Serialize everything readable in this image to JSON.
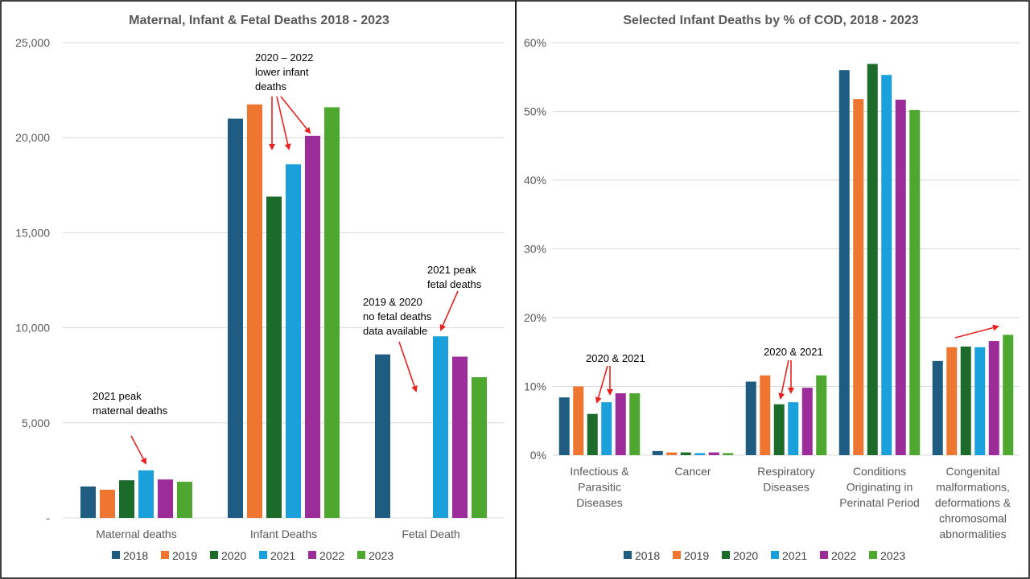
{
  "chart_data": [
    {
      "type": "bar",
      "title": "Maternal, Infant & Fetal Deaths 2018 - 2023",
      "xlabel": "",
      "ylabel": "",
      "ylim": [
        0,
        25000
      ],
      "yticks": [
        "-",
        "5,000",
        "10,000",
        "15,000",
        "20,000",
        "25,000"
      ],
      "grid": true,
      "legend_position": "bottom",
      "categories": [
        "Maternal deaths",
        "Infant Deaths",
        "Fetal Death"
      ],
      "series": [
        {
          "name": "2018",
          "color": "#1f5c82",
          "values": [
            1650,
            21000,
            8600
          ]
        },
        {
          "name": "2019",
          "color": "#ee7630",
          "values": [
            1480,
            21750,
            null
          ]
        },
        {
          "name": "2020",
          "color": "#1d6b2a",
          "values": [
            1980,
            16900,
            null
          ]
        },
        {
          "name": "2021",
          "color": "#1aa0db",
          "values": [
            2500,
            18600,
            9550
          ]
        },
        {
          "name": "2022",
          "color": "#9b2c99",
          "values": [
            2020,
            20100,
            8480
          ]
        },
        {
          "name": "2023",
          "color": "#4ea72e",
          "values": [
            1900,
            21600,
            7400
          ]
        }
      ],
      "annotations": [
        {
          "text": [
            "2021 peak",
            "maternal deaths"
          ]
        },
        {
          "text": [
            "2020 – 2022",
            "lower infant",
            "deaths"
          ]
        },
        {
          "text": [
            "2021 peak",
            "fetal deaths"
          ]
        },
        {
          "text": [
            "2019 & 2020",
            "no fetal deaths",
            "data available"
          ]
        }
      ]
    },
    {
      "type": "bar",
      "title": "Selected Infant Deaths by % of COD, 2018 - 2023",
      "xlabel": "",
      "ylabel": "",
      "ylim": [
        0,
        60
      ],
      "yticks": [
        "0%",
        "10%",
        "20%",
        "30%",
        "40%",
        "50%",
        "60%"
      ],
      "grid": true,
      "legend_position": "bottom",
      "categories": [
        [
          "Infectious &",
          "Parasitic",
          "Diseases"
        ],
        [
          "Cancer"
        ],
        [
          "Respiratory",
          "Diseases"
        ],
        [
          "Conditions",
          "Originating in",
          "Perinatal Period"
        ],
        [
          "Congenital",
          "malformations,",
          "deformations &",
          "chromosomal",
          "abnormalities"
        ]
      ],
      "series": [
        {
          "name": "2018",
          "color": "#1f5c82",
          "values": [
            8.4,
            0.6,
            10.7,
            56.0,
            13.7
          ]
        },
        {
          "name": "2019",
          "color": "#ee7630",
          "values": [
            10.0,
            0.4,
            11.6,
            51.8,
            15.7
          ]
        },
        {
          "name": "2020",
          "color": "#1d6b2a",
          "values": [
            6.0,
            0.4,
            7.4,
            56.9,
            15.8
          ]
        },
        {
          "name": "2021",
          "color": "#1aa0db",
          "values": [
            7.7,
            0.3,
            7.7,
            55.3,
            15.7
          ]
        },
        {
          "name": "2022",
          "color": "#9b2c99",
          "values": [
            9.0,
            0.4,
            9.8,
            51.7,
            16.6
          ]
        },
        {
          "name": "2023",
          "color": "#4ea72e",
          "values": [
            9.0,
            0.3,
            11.6,
            50.2,
            17.5
          ]
        }
      ],
      "annotations": [
        {
          "text": [
            "2020 & 2021"
          ]
        },
        {
          "text": [
            "2020 & 2021"
          ]
        }
      ]
    }
  ],
  "colors": {
    "annotation_arrow": "#e8221f",
    "gridline": "#d9d9d9",
    "panel_border": "#000000"
  }
}
